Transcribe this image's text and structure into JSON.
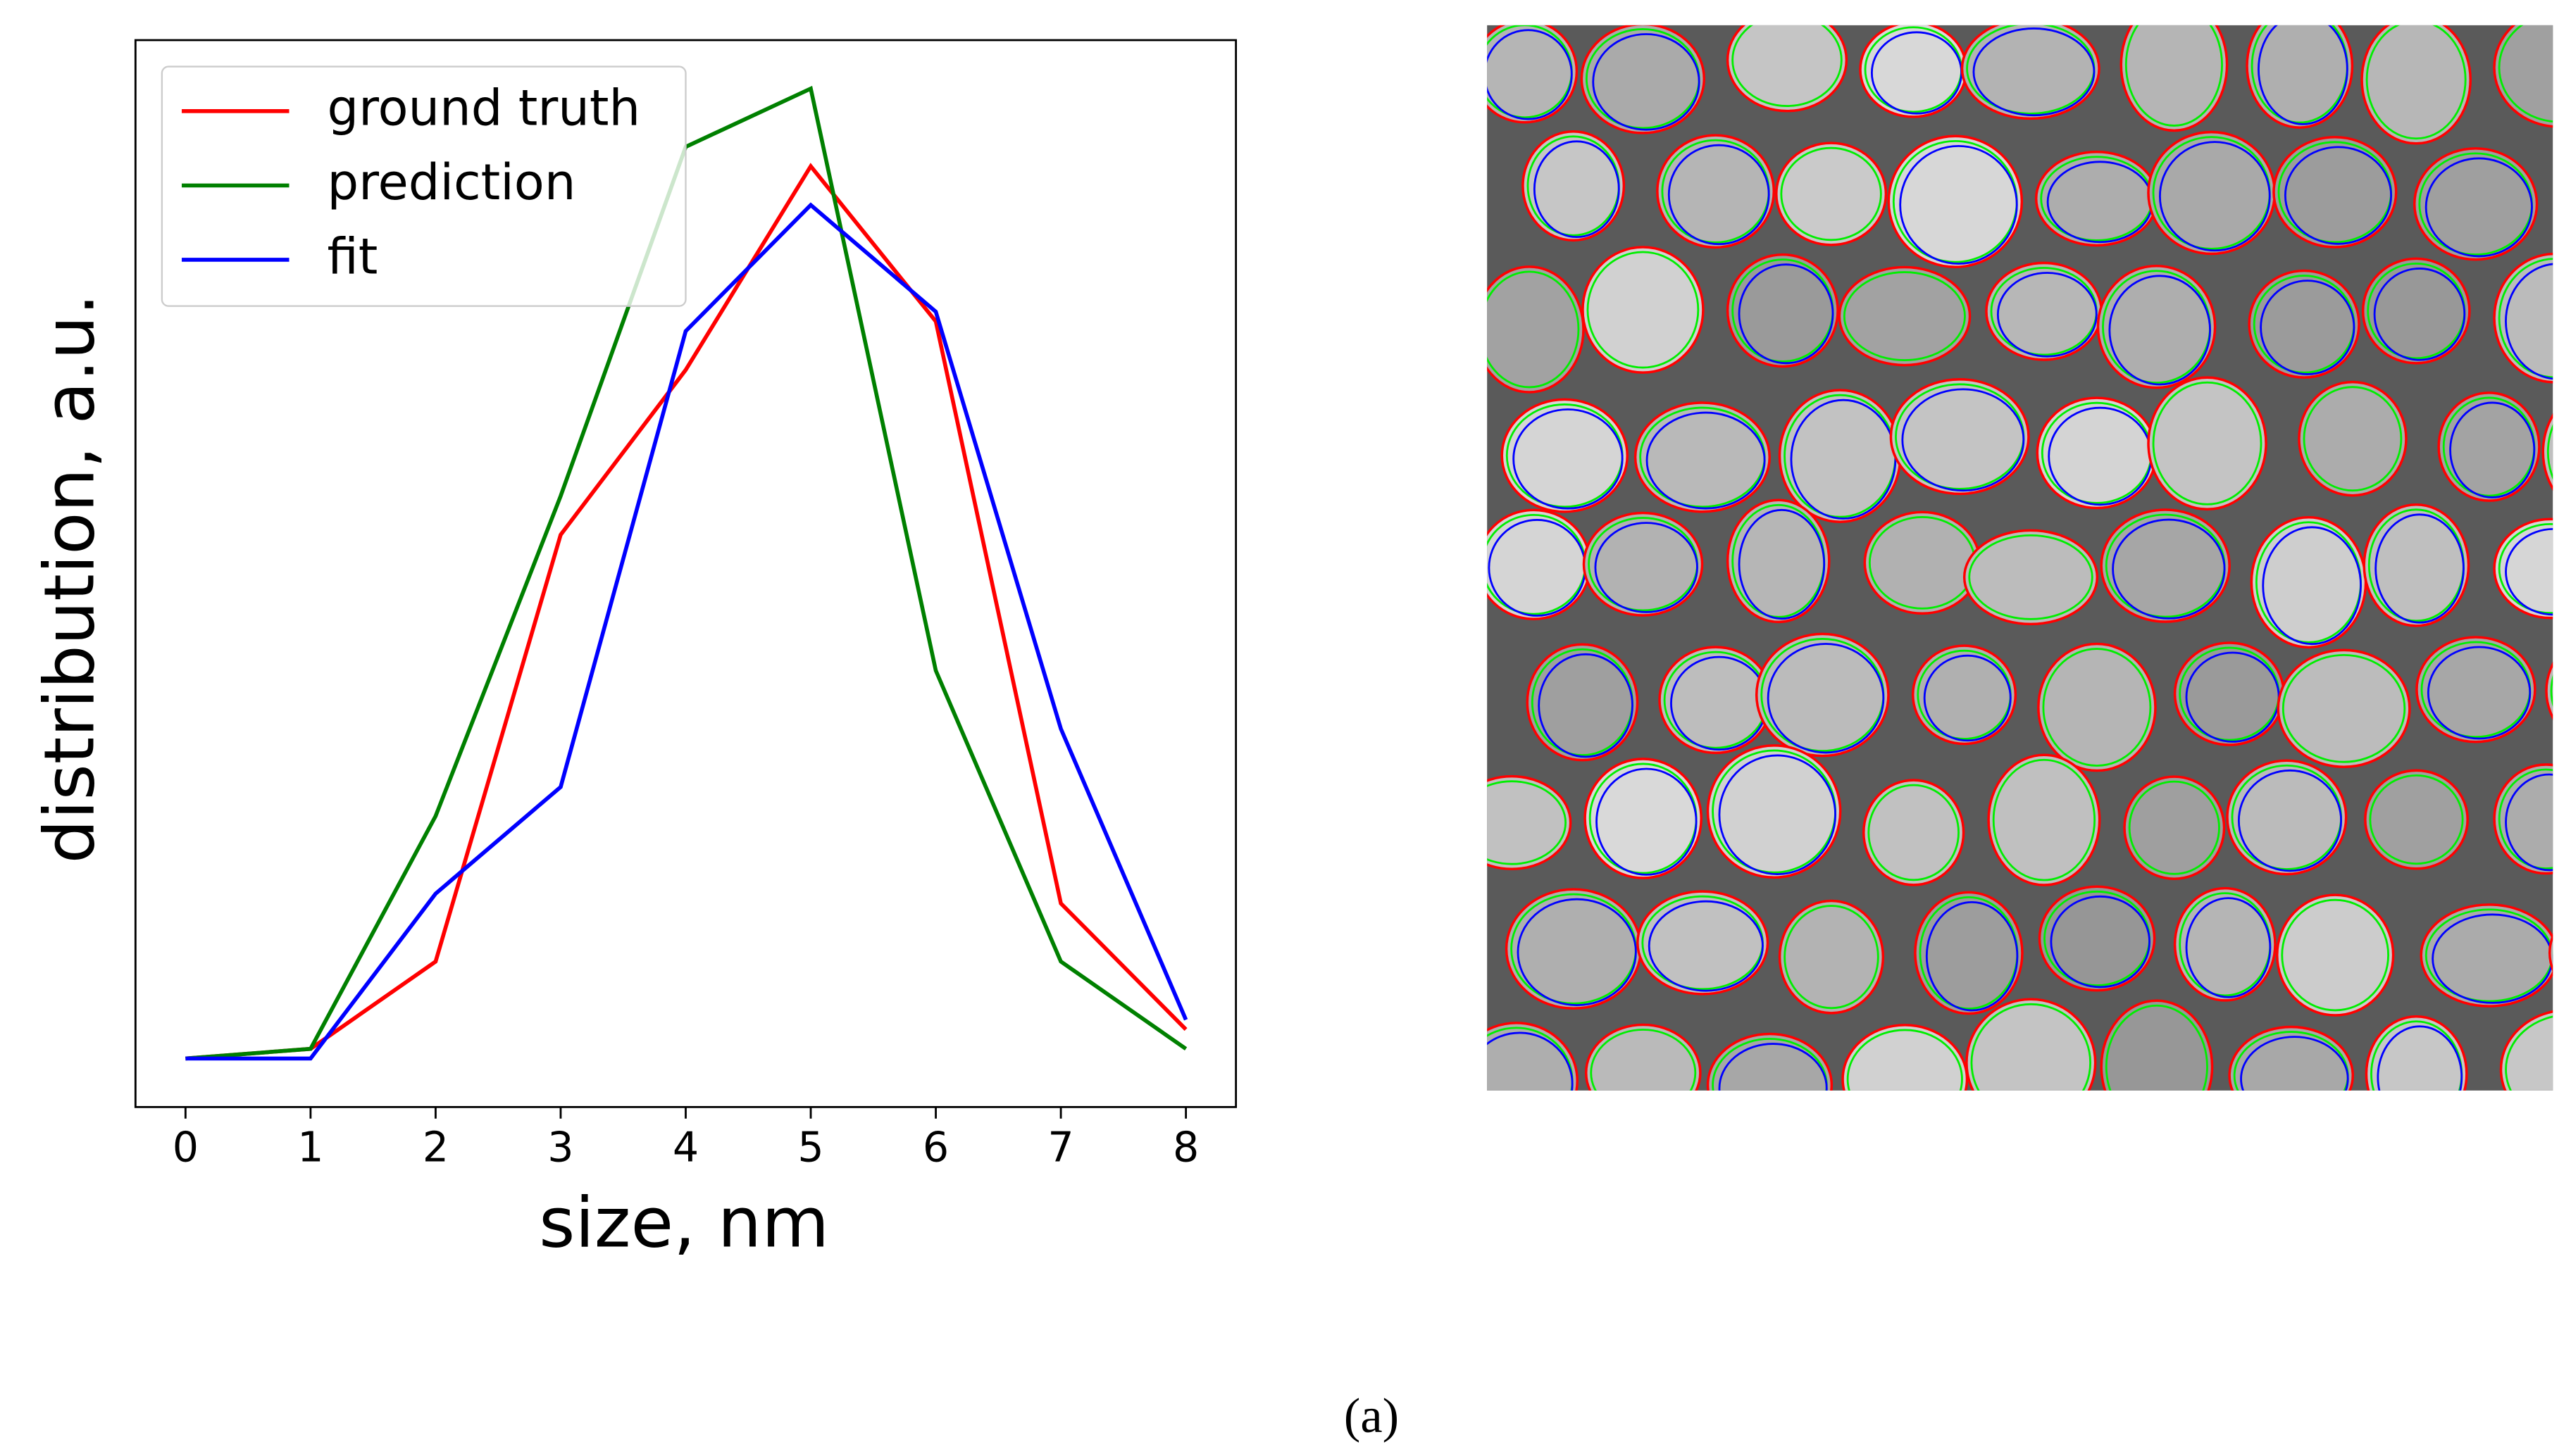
{
  "chart_data": {
    "type": "line",
    "x_label": "size, nm",
    "y_label": "distribution, a.u.",
    "x": [
      0,
      1,
      2,
      3,
      4,
      5,
      6,
      7,
      8
    ],
    "xlim": [
      -0.4,
      8.4
    ],
    "xticks": [
      0,
      1,
      2,
      3,
      4,
      5,
      6,
      7,
      8
    ],
    "ylim": [
      -0.05,
      1.05
    ],
    "legend": "upper left",
    "series": [
      {
        "name": "ground truth",
        "color": "#ff0000",
        "values": [
          0,
          0.01,
          0.1,
          0.54,
          0.71,
          0.92,
          0.76,
          0.16,
          0.03
        ]
      },
      {
        "name": "prediction",
        "color": "#008000",
        "values": [
          0,
          0.01,
          0.25,
          0.58,
          0.94,
          1.0,
          0.4,
          0.1,
          0.01
        ]
      },
      {
        "name": "fit",
        "color": "#0000ff",
        "values": [
          0,
          0,
          0.17,
          0.28,
          0.75,
          0.88,
          0.77,
          0.34,
          0.04
        ]
      }
    ]
  },
  "caption": "(a)"
}
